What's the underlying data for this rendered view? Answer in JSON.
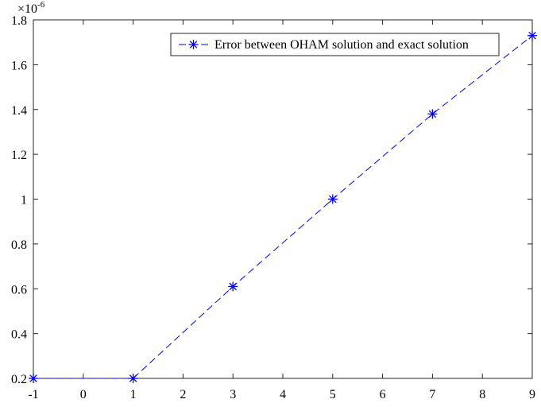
{
  "chart_data": {
    "type": "line",
    "x_tick_labels": [
      "-1",
      "0",
      "1",
      "2",
      "3",
      "4",
      "5",
      "6",
      "7",
      "8",
      "9"
    ],
    "y_tick_labels": [
      "0.2",
      "0.4",
      "0.6",
      "0.8",
      "1",
      "1.2",
      "1.4",
      "1.6",
      "1.8"
    ],
    "y_ticks": [
      0.2,
      0.4,
      0.6,
      0.8,
      1.0,
      1.2,
      1.4,
      1.6,
      1.8
    ],
    "y_exponent_base": "×10",
    "y_exponent_power": "-6",
    "xlim": [
      -1,
      9
    ],
    "ylim": [
      0.2,
      1.8
    ],
    "grid": false,
    "legend_position": "top-right",
    "series": [
      {
        "name": "Error between OHAM solution and exact solution",
        "color": "#0000ff",
        "line_style": "dashed",
        "marker": "asterisk",
        "x": [
          -1,
          1,
          3,
          5,
          7,
          9
        ],
        "y": [
          0.2,
          0.2,
          0.61,
          1.0,
          1.38,
          1.73
        ]
      }
    ]
  }
}
